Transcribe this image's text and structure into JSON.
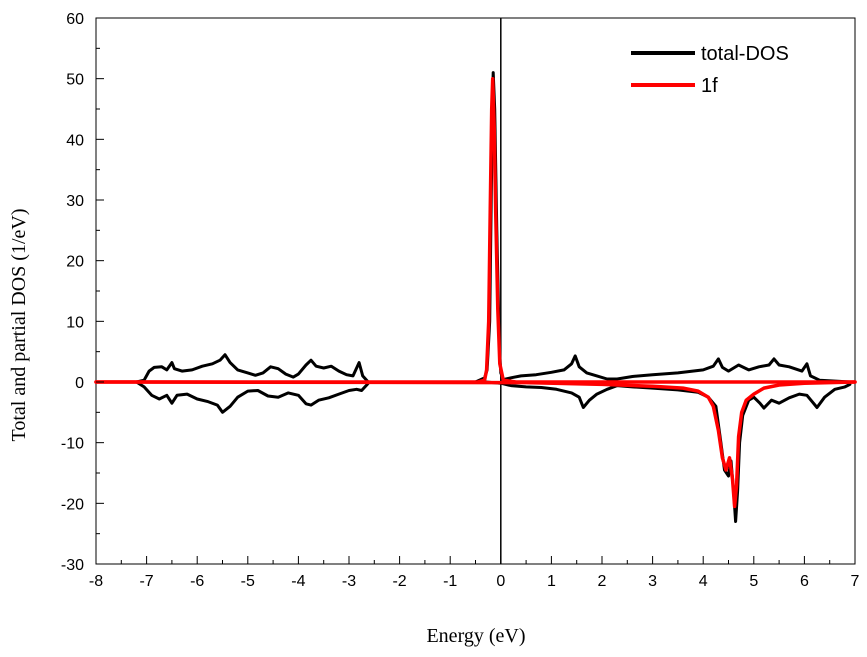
{
  "chart_data": {
    "type": "line",
    "title": "",
    "xlabel": "Energy (eV)",
    "ylabel": "Total and partial DOS (1/eV)",
    "xlim": [
      -8,
      7
    ],
    "ylim": [
      -30,
      60
    ],
    "xticks": [
      -8,
      -7,
      -6,
      -5,
      -4,
      -3,
      -2,
      -1,
      0,
      1,
      2,
      3,
      4,
      5,
      6,
      7
    ],
    "yticks": [
      -30,
      -20,
      -10,
      0,
      10,
      20,
      30,
      40,
      50,
      60
    ],
    "grid": false,
    "legend": "top-right",
    "zero_line": 0,
    "series": [
      {
        "name": "total-DOS",
        "color": "#000000",
        "upper": [
          [
            -7.2,
            0
          ],
          [
            -7.05,
            0.3
          ],
          [
            -6.95,
            1.8
          ],
          [
            -6.85,
            2.4
          ],
          [
            -6.7,
            2.5
          ],
          [
            -6.6,
            2.0
          ],
          [
            -6.5,
            3.2
          ],
          [
            -6.45,
            2.2
          ],
          [
            -6.3,
            1.8
          ],
          [
            -6.1,
            2.0
          ],
          [
            -5.9,
            2.6
          ],
          [
            -5.7,
            3.0
          ],
          [
            -5.55,
            3.6
          ],
          [
            -5.45,
            4.5
          ],
          [
            -5.35,
            3.2
          ],
          [
            -5.2,
            2.0
          ],
          [
            -5.0,
            1.5
          ],
          [
            -4.85,
            1.1
          ],
          [
            -4.7,
            1.5
          ],
          [
            -4.55,
            2.5
          ],
          [
            -4.4,
            2.2
          ],
          [
            -4.25,
            1.3
          ],
          [
            -4.1,
            0.8
          ],
          [
            -4.0,
            1.3
          ],
          [
            -3.85,
            2.8
          ],
          [
            -3.75,
            3.6
          ],
          [
            -3.65,
            2.6
          ],
          [
            -3.5,
            2.3
          ],
          [
            -3.35,
            2.6
          ],
          [
            -3.2,
            1.8
          ],
          [
            -3.05,
            1.2
          ],
          [
            -2.92,
            1.0
          ],
          [
            -2.8,
            3.2
          ],
          [
            -2.73,
            1.0
          ],
          [
            -2.62,
            0
          ],
          [
            -0.5,
            0
          ],
          [
            -0.32,
            0.7
          ],
          [
            -0.27,
            2
          ],
          [
            -0.22,
            10
          ],
          [
            -0.19,
            30
          ],
          [
            -0.16,
            48
          ],
          [
            -0.15,
            51
          ],
          [
            -0.12,
            45
          ],
          [
            -0.08,
            25
          ],
          [
            -0.03,
            6
          ],
          [
            0.0,
            1.5
          ],
          [
            0.05,
            0.4
          ],
          [
            0.2,
            0.7
          ],
          [
            0.4,
            1.0
          ],
          [
            0.7,
            1.2
          ],
          [
            1.0,
            1.6
          ],
          [
            1.25,
            2.0
          ],
          [
            1.4,
            3.0
          ],
          [
            1.47,
            4.3
          ],
          [
            1.55,
            2.5
          ],
          [
            1.7,
            1.5
          ],
          [
            1.9,
            1.0
          ],
          [
            2.1,
            0.5
          ],
          [
            2.3,
            0.5
          ],
          [
            2.6,
            0.9
          ],
          [
            3.0,
            1.2
          ],
          [
            3.5,
            1.5
          ],
          [
            4.0,
            2.0
          ],
          [
            4.2,
            2.6
          ],
          [
            4.3,
            3.8
          ],
          [
            4.38,
            2.4
          ],
          [
            4.5,
            1.8
          ],
          [
            4.7,
            2.8
          ],
          [
            4.9,
            2.0
          ],
          [
            5.1,
            2.5
          ],
          [
            5.3,
            2.8
          ],
          [
            5.4,
            3.8
          ],
          [
            5.5,
            2.8
          ],
          [
            5.7,
            2.5
          ],
          [
            5.95,
            1.8
          ],
          [
            6.05,
            3.0
          ],
          [
            6.12,
            1.0
          ],
          [
            6.3,
            0.3
          ],
          [
            6.7,
            0.1
          ],
          [
            6.9,
            0
          ]
        ],
        "lower": [
          [
            -7.2,
            0
          ],
          [
            -7.05,
            -0.8
          ],
          [
            -6.9,
            -2.2
          ],
          [
            -6.75,
            -2.8
          ],
          [
            -6.6,
            -2.2
          ],
          [
            -6.5,
            -3.5
          ],
          [
            -6.4,
            -2.2
          ],
          [
            -6.2,
            -2.0
          ],
          [
            -6.0,
            -2.8
          ],
          [
            -5.8,
            -3.2
          ],
          [
            -5.6,
            -3.8
          ],
          [
            -5.5,
            -5.0
          ],
          [
            -5.35,
            -4.0
          ],
          [
            -5.2,
            -2.5
          ],
          [
            -5.0,
            -1.5
          ],
          [
            -4.8,
            -1.4
          ],
          [
            -4.6,
            -2.3
          ],
          [
            -4.4,
            -2.5
          ],
          [
            -4.2,
            -1.8
          ],
          [
            -4.0,
            -2.2
          ],
          [
            -3.85,
            -3.6
          ],
          [
            -3.75,
            -3.8
          ],
          [
            -3.6,
            -3.0
          ],
          [
            -3.4,
            -2.6
          ],
          [
            -3.2,
            -2.0
          ],
          [
            -3.0,
            -1.4
          ],
          [
            -2.85,
            -1.2
          ],
          [
            -2.75,
            -1.4
          ],
          [
            -2.65,
            -0.5
          ],
          [
            -2.6,
            0
          ],
          [
            -0.3,
            0
          ],
          [
            0.0,
            -0.2
          ],
          [
            0.2,
            -0.6
          ],
          [
            0.5,
            -0.8
          ],
          [
            0.8,
            -0.9
          ],
          [
            1.1,
            -1.2
          ],
          [
            1.4,
            -1.8
          ],
          [
            1.55,
            -2.5
          ],
          [
            1.63,
            -4.2
          ],
          [
            1.75,
            -3.0
          ],
          [
            1.9,
            -2.0
          ],
          [
            2.1,
            -1.2
          ],
          [
            2.3,
            -0.6
          ],
          [
            2.6,
            -0.8
          ],
          [
            3.0,
            -1.0
          ],
          [
            3.5,
            -1.3
          ],
          [
            3.9,
            -1.7
          ],
          [
            4.1,
            -2.5
          ],
          [
            4.25,
            -4.0
          ],
          [
            4.35,
            -10.0
          ],
          [
            4.42,
            -14.5
          ],
          [
            4.5,
            -15.5
          ],
          [
            4.55,
            -13.0
          ],
          [
            4.6,
            -18.0
          ],
          [
            4.64,
            -23.0
          ],
          [
            4.68,
            -18.0
          ],
          [
            4.72,
            -10.0
          ],
          [
            4.78,
            -5.5
          ],
          [
            4.9,
            -3.0
          ],
          [
            5.0,
            -2.5
          ],
          [
            5.12,
            -3.5
          ],
          [
            5.2,
            -4.3
          ],
          [
            5.35,
            -3.0
          ],
          [
            5.5,
            -3.5
          ],
          [
            5.7,
            -2.6
          ],
          [
            5.9,
            -2.0
          ],
          [
            6.05,
            -2.2
          ],
          [
            6.15,
            -3.2
          ],
          [
            6.25,
            -4.2
          ],
          [
            6.4,
            -2.5
          ],
          [
            6.6,
            -1.2
          ],
          [
            6.8,
            -0.8
          ],
          [
            6.9,
            -0.4
          ]
        ]
      },
      {
        "name": "1f",
        "color": "#ff0000",
        "upper": [
          [
            -8.0,
            0
          ],
          [
            -0.45,
            0
          ],
          [
            -0.32,
            0.3
          ],
          [
            -0.28,
            2
          ],
          [
            -0.24,
            10
          ],
          [
            -0.21,
            28
          ],
          [
            -0.18,
            45
          ],
          [
            -0.16,
            50
          ],
          [
            -0.13,
            42
          ],
          [
            -0.1,
            28
          ],
          [
            -0.06,
            12
          ],
          [
            -0.02,
            3
          ],
          [
            0.05,
            0.3
          ],
          [
            0.3,
            0
          ],
          [
            7.0,
            0
          ]
        ],
        "lower": [
          [
            -8.0,
            0
          ],
          [
            0.5,
            -0.1
          ],
          [
            2.0,
            -0.4
          ],
          [
            3.0,
            -0.7
          ],
          [
            3.6,
            -1.0
          ],
          [
            3.9,
            -1.5
          ],
          [
            4.1,
            -2.5
          ],
          [
            4.2,
            -4.0
          ],
          [
            4.3,
            -8.0
          ],
          [
            4.38,
            -12.5
          ],
          [
            4.45,
            -14.5
          ],
          [
            4.52,
            -12.5
          ],
          [
            4.58,
            -16.0
          ],
          [
            4.62,
            -20.5
          ],
          [
            4.66,
            -17.0
          ],
          [
            4.7,
            -9.0
          ],
          [
            4.76,
            -5.0
          ],
          [
            4.85,
            -3.0
          ],
          [
            5.0,
            -2.0
          ],
          [
            5.2,
            -1.0
          ],
          [
            5.5,
            -0.5
          ],
          [
            6.0,
            -0.2
          ],
          [
            7.0,
            0
          ]
        ]
      }
    ]
  }
}
